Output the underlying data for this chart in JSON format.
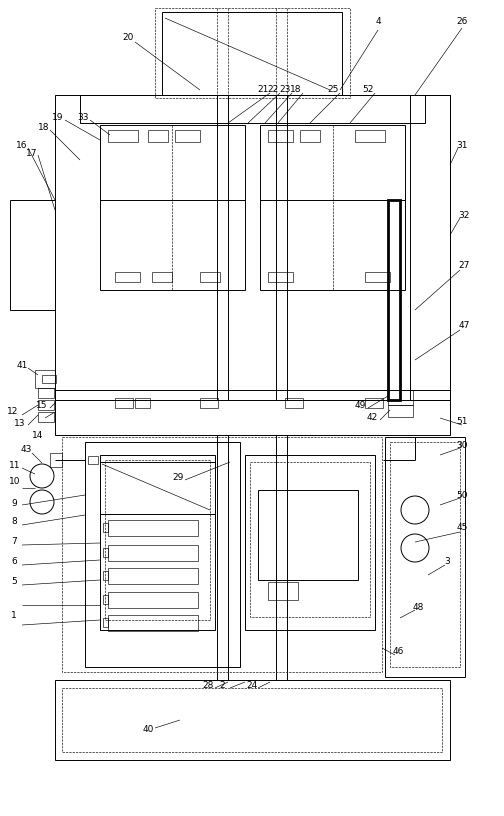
{
  "fig_width": 5.04,
  "fig_height": 8.16,
  "dpi": 100,
  "bg_color": "#ffffff",
  "lc": "#000000",
  "lw": 0.7,
  "tlw": 0.45,
  "thk": 2.0,
  "fs": 6.5
}
